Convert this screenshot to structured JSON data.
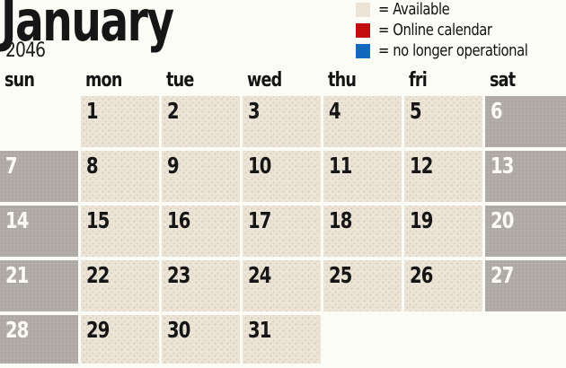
{
  "title": {
    "month": "January",
    "year": "2046"
  },
  "legend": {
    "items": [
      {
        "name": "available",
        "color": "#ebe4d7",
        "label": "= Available"
      },
      {
        "name": "online-calendar",
        "color": "#c20e0e",
        "label": "= Online calendar"
      },
      {
        "name": "no-longer-operational",
        "color": "#1268bb",
        "label": "= no longer operational"
      }
    ]
  },
  "calendar": {
    "weekdays": [
      "sun",
      "mon",
      "tue",
      "wed",
      "thu",
      "fri",
      "sat"
    ],
    "weeks": [
      [
        "",
        "1",
        "2",
        "3",
        "4",
        "5",
        "6"
      ],
      [
        "7",
        "8",
        "9",
        "10",
        "11",
        "12",
        "13"
      ],
      [
        "14",
        "15",
        "16",
        "17",
        "18",
        "19",
        "20"
      ],
      [
        "21",
        "22",
        "23",
        "24",
        "25",
        "26",
        "27"
      ],
      [
        "28",
        "29",
        "30",
        "31",
        "",
        "",
        ""
      ]
    ]
  },
  "colors": {
    "weekday_cell": "#ebe4d7",
    "weekend_cell": "#b3ada7",
    "weekend_number": "#fbfaf7",
    "weekday_number": "#161616",
    "background": "#fcfcf7"
  }
}
